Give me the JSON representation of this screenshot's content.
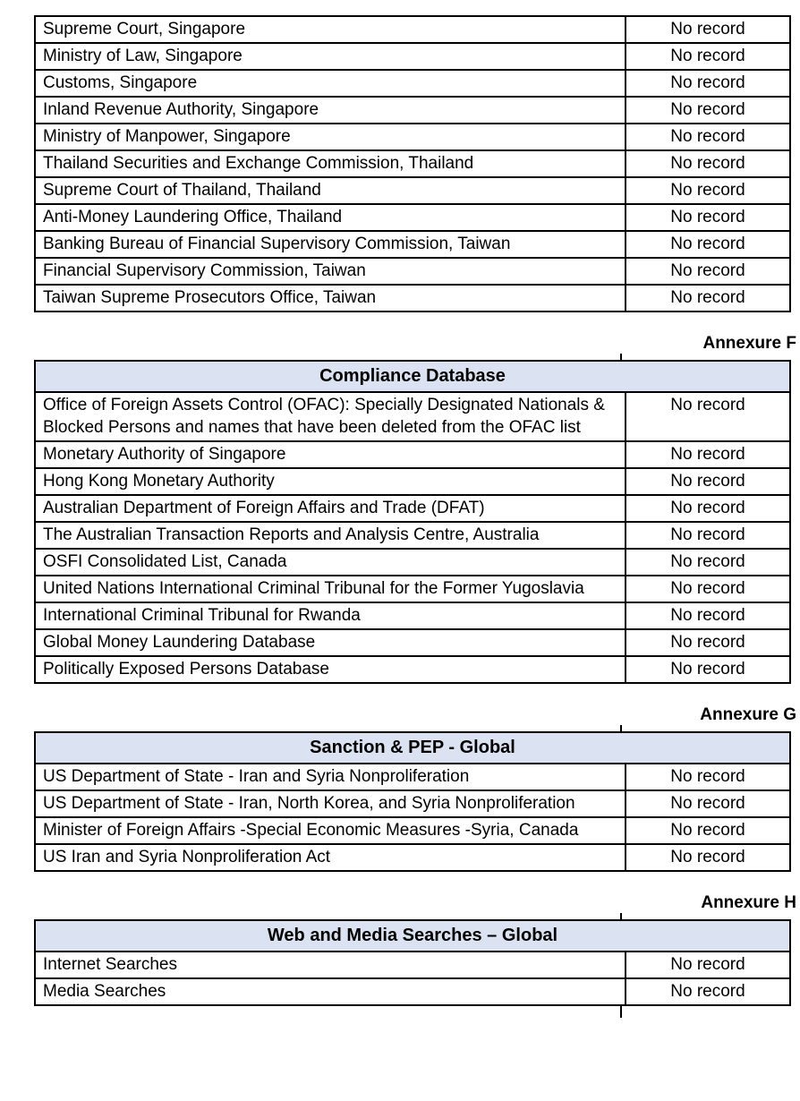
{
  "colors": {
    "header_bg": "#DBE2F2",
    "border": "#000000",
    "text": "#000000",
    "page_bg": "#FFFFFF"
  },
  "result_label": "No record",
  "continuation_table": {
    "rows": [
      {
        "source": "Supreme Court, Singapore",
        "result": "No record"
      },
      {
        "source": "Ministry of Law, Singapore",
        "result": "No record"
      },
      {
        "source": "Customs, Singapore",
        "result": "No record"
      },
      {
        "source": "Inland Revenue Authority, Singapore",
        "result": "No record"
      },
      {
        "source": "Ministry of Manpower, Singapore",
        "result": "No record"
      },
      {
        "source": "Thailand Securities and Exchange Commission, Thailand",
        "result": "No record"
      },
      {
        "source": "Supreme Court of Thailand, Thailand",
        "result": "No record"
      },
      {
        "source": "Anti-Money Laundering Office, Thailand",
        "result": "No record"
      },
      {
        "source": "Banking Bureau of Financial Supervisory Commission, Taiwan",
        "result": "No record"
      },
      {
        "source": "Financial Supervisory Commission, Taiwan",
        "result": "No record"
      },
      {
        "source": "Taiwan Supreme Prosecutors Office, Taiwan",
        "result": "No record"
      }
    ]
  },
  "annexures": [
    {
      "label": "Annexure F",
      "title": "Compliance Database",
      "rows": [
        {
          "source": "Office of Foreign Assets Control (OFAC): Specially Designated Nationals & Blocked Persons and names that have been deleted from the OFAC list",
          "result": "No record"
        },
        {
          "source": "Monetary Authority of Singapore",
          "result": "No record"
        },
        {
          "source": "Hong Kong Monetary Authority",
          "result": "No record"
        },
        {
          "source": "Australian Department of Foreign Affairs and Trade (DFAT)",
          "result": "No record"
        },
        {
          "source": "The Australian Transaction Reports and Analysis Centre, Australia",
          "result": "No record"
        },
        {
          "source": "OSFI Consolidated List, Canada",
          "result": "No record"
        },
        {
          "source": "United Nations International Criminal Tribunal for the Former Yugoslavia",
          "result": "No record"
        },
        {
          "source": "International Criminal Tribunal for Rwanda",
          "result": "No record"
        },
        {
          "source": "Global Money Laundering Database",
          "result": "No record"
        },
        {
          "source": "Politically Exposed Persons Database",
          "result": "No record"
        }
      ]
    },
    {
      "label": "Annexure G",
      "title": "Sanction & PEP - Global",
      "rows": [
        {
          "source": "US Department of State - Iran and Syria Nonproliferation",
          "result": "No record"
        },
        {
          "source": "US Department of State - Iran, North Korea, and Syria Nonproliferation",
          "result": "No record"
        },
        {
          "source": "Minister of Foreign Affairs -Special Economic Measures -Syria, Canada",
          "result": "No record"
        },
        {
          "source": "US Iran and Syria Nonproliferation Act",
          "result": "No record"
        }
      ]
    },
    {
      "label": "Annexure H",
      "title": "Web and Media Searches – Global",
      "rows": [
        {
          "source": "Internet Searches",
          "result": "No record"
        },
        {
          "source": "Media Searches",
          "result": "No record"
        }
      ]
    }
  ]
}
